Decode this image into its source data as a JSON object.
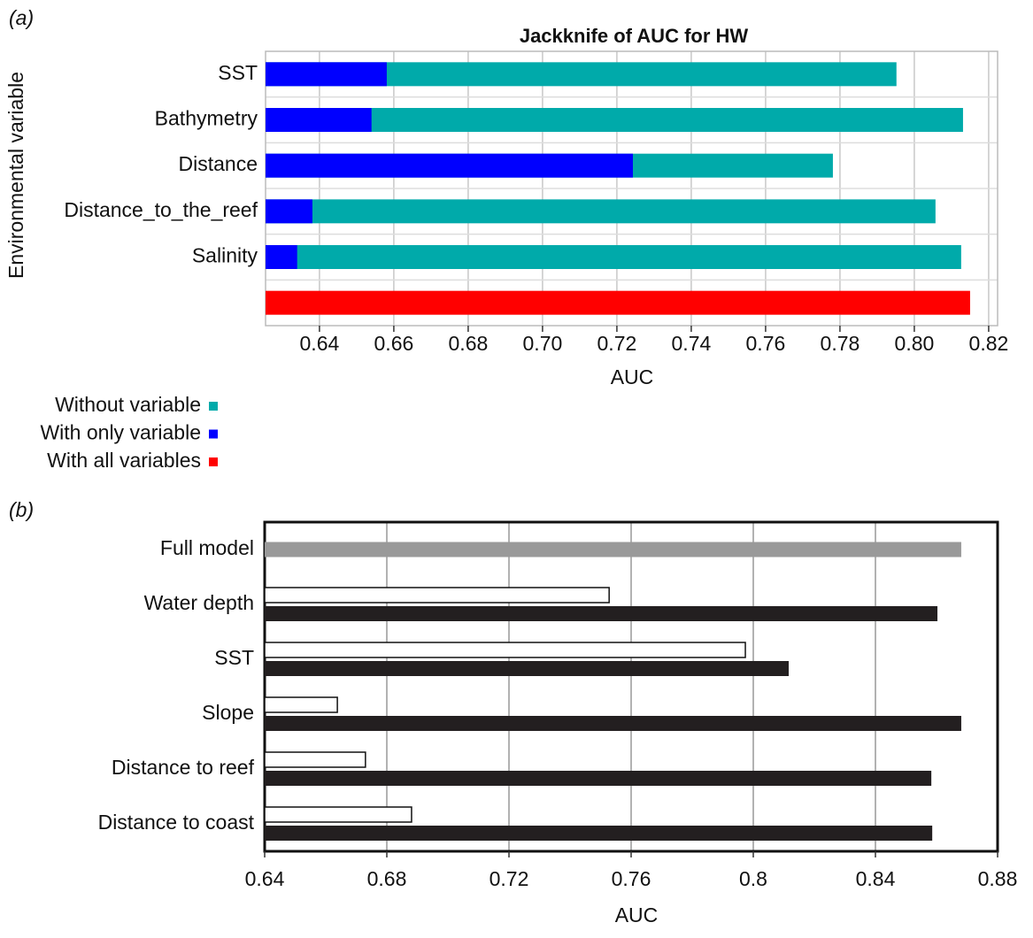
{
  "chart_data": [
    {
      "type": "hbar",
      "panel": "(a)",
      "title": "Jackknife of AUC for HW",
      "xlabel": "AUC",
      "ylabel": "Environmental variable",
      "categories": [
        "SST",
        "Bathymetry",
        "Distance",
        "Distance_to_the_reef",
        "Salinity",
        null
      ],
      "series": [
        {
          "name": "Without variable",
          "color": "#00aaaa",
          "values": [
            0.7952,
            0.8131,
            0.7781,
            0.8057,
            0.8126,
            null
          ]
        },
        {
          "name": "With only variable",
          "color": "#0000ff",
          "values": [
            0.6581,
            0.654,
            0.7243,
            0.6381,
            0.634,
            null
          ]
        },
        {
          "name": "With all variables",
          "color": "#ff0000",
          "values": [
            null,
            null,
            null,
            null,
            null,
            0.815
          ]
        }
      ],
      "xlim": [
        0.6255,
        0.8224
      ],
      "xticks": [
        0.64,
        0.66,
        0.68,
        {
          "value": 0.7,
          "label": "0.70"
        },
        0.72,
        0.74,
        0.76,
        0.78,
        {
          "value": 0.8,
          "label": "0.80"
        },
        0.82
      ],
      "grid": true,
      "overlay": true
    },
    {
      "type": "hbar",
      "panel": "(b)",
      "xlabel": "AUC",
      "categories": [
        "Full model",
        "Water depth",
        "SST",
        "Slope",
        "Distance to reef",
        "Distance to coast"
      ],
      "series": [
        {
          "color": "#999999",
          "values": [
            0.8681,
            null,
            null,
            null,
            null,
            null
          ]
        },
        {
          "color": "#ffffff",
          "values": [
            null,
            0.7528,
            0.7974,
            0.6638,
            0.673,
            0.6881
          ]
        },
        {
          "color": "#231f20",
          "values": [
            null,
            0.8603,
            0.8116,
            0.8681,
            0.8583,
            0.8586
          ]
        }
      ],
      "xlim": [
        0.64,
        0.88
      ],
      "xticks": [
        0.64,
        0.68,
        0.72,
        0.76,
        0.8,
        0.84,
        0.88
      ],
      "grid": true,
      "overlay": false
    }
  ]
}
